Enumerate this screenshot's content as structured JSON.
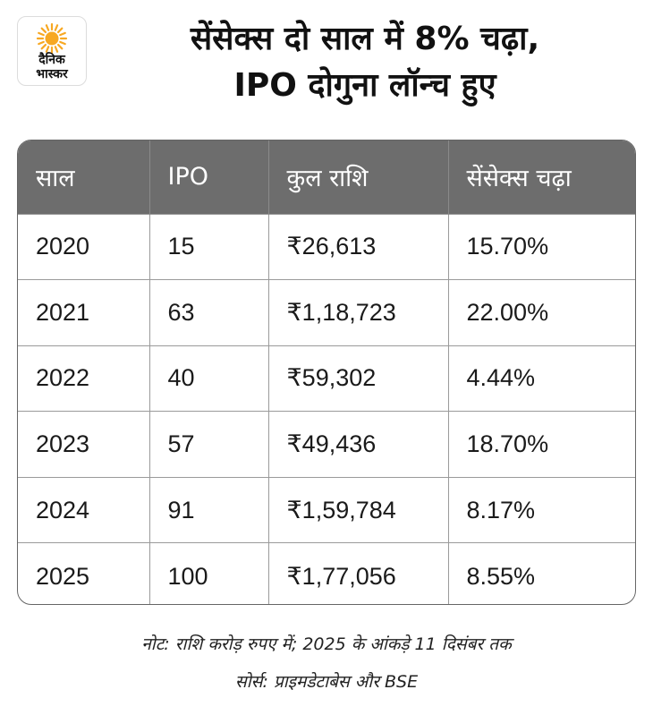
{
  "brand": {
    "line1": "दैनिक",
    "line2": "भास्कर",
    "sun_color": "#f7a823"
  },
  "title": {
    "line1": "सेंसेक्स दो साल में 8% चढ़ा,",
    "line2": "IPO दोगुना लॉन्च हुए"
  },
  "table": {
    "headers": [
      "साल",
      "IPO",
      "कुल राशि",
      "सेंसेक्स चढ़ा"
    ],
    "rows": [
      [
        "2020",
        "15",
        "₹26,613",
        "15.70%"
      ],
      [
        "2021",
        "63",
        "₹1,18,723",
        "22.00%"
      ],
      [
        "2022",
        "40",
        "₹59,302",
        "4.44%"
      ],
      [
        "2023",
        "57",
        "₹49,436",
        "18.70%"
      ],
      [
        "2024",
        "91",
        "₹1,59,784",
        "8.17%"
      ],
      [
        "2025",
        "100",
        "₹1,77,056",
        "8.55%"
      ]
    ],
    "header_color": "#6d6d6d"
  },
  "footnotes": {
    "note": "नोट: राशि करोड़ रुपए में; 2025 के आंकड़े 11 दिसंबर तक",
    "source": "सोर्स: प्राइमडेटाबेस और BSE"
  }
}
